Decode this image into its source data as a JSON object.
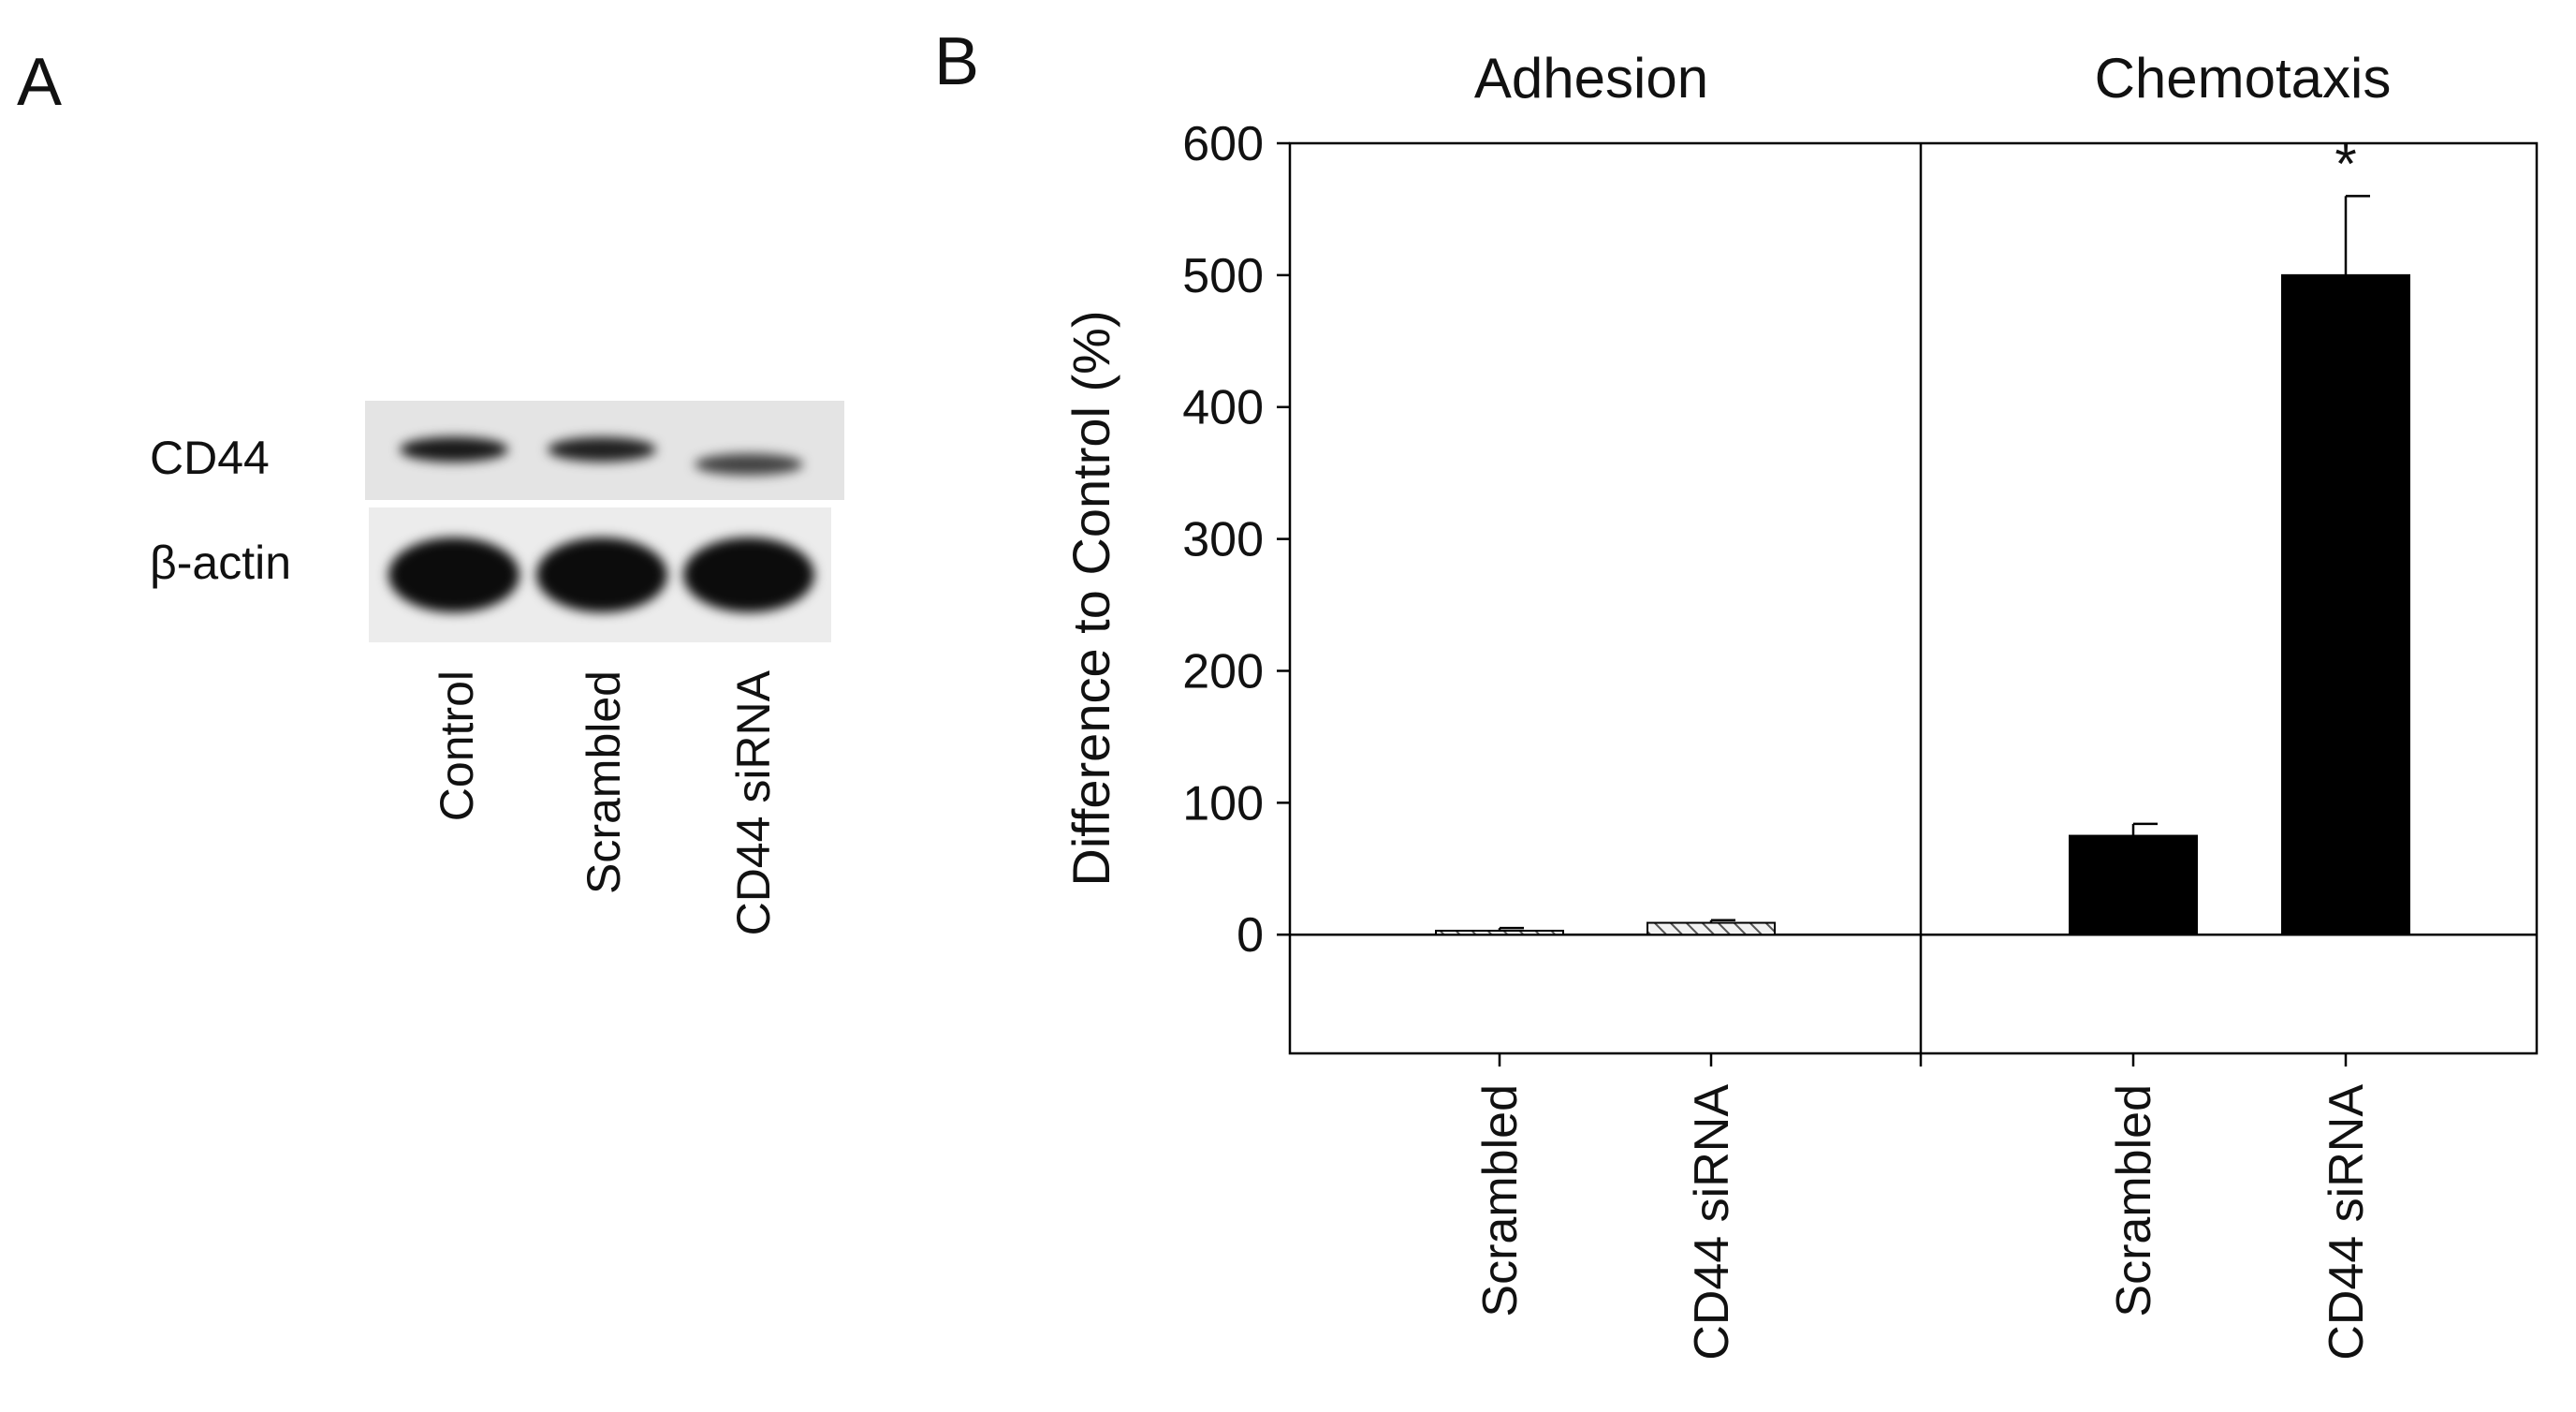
{
  "panel_a": {
    "label": "A",
    "row_labels": [
      "CD44",
      "β-actin"
    ],
    "lanes": [
      "Control",
      "Scrambled",
      "CD44 siRNA"
    ],
    "band_intensity": {
      "CD44": [
        0.9,
        0.85,
        0.6
      ],
      "beta_actin": [
        1.0,
        1.0,
        1.0
      ]
    }
  },
  "panel_b": {
    "label": "B"
  },
  "chart_data": {
    "type": "bar",
    "ylabel": "Difference to Control (%)",
    "ylim": [
      -90,
      600
    ],
    "yticks": [
      0,
      100,
      200,
      300,
      400,
      500,
      600
    ],
    "grid": false,
    "groups": [
      {
        "title": "Adhesion",
        "categories": [
          "Scrambled",
          "CD44 siRNA"
        ],
        "values": [
          3,
          9
        ],
        "errors": [
          2,
          2
        ],
        "fill": "hatched",
        "annotations": [
          "",
          ""
        ]
      },
      {
        "title": "Chemotaxis",
        "categories": [
          "Scrambled",
          "CD44 siRNA"
        ],
        "values": [
          75,
          500
        ],
        "errors": [
          9,
          60
        ],
        "fill": "solid",
        "annotations": [
          "",
          "*"
        ]
      }
    ],
    "colors": {
      "solid": "#000000",
      "hatch": "#555555",
      "hatch_bg": "#f2f2f2"
    }
  }
}
